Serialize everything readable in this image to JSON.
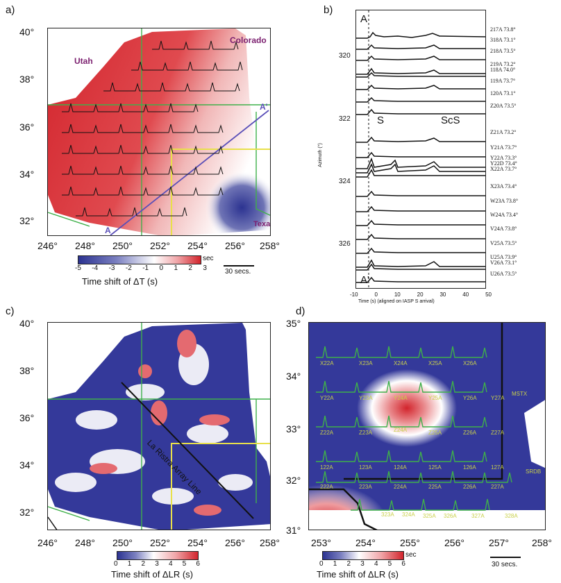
{
  "panels": {
    "a": "a)",
    "b": "b)",
    "c": "c)",
    "d": "d)"
  },
  "panel_a": {
    "lat_ticks": [
      "40°",
      "38°",
      "36°",
      "34°",
      "32°"
    ],
    "lon_ticks": [
      "246°",
      "248°",
      "250°",
      "252°",
      "254°",
      "256°",
      "258°"
    ],
    "states": {
      "utah": "Utah",
      "colorado": "Colorado",
      "texas": "Texas"
    },
    "profile_start": "A",
    "profile_end": "A'",
    "colorbar_ticks": [
      "-5",
      "-4",
      "-3",
      "-2",
      "-1",
      "0",
      "1",
      "2",
      "3"
    ],
    "colorbar_unit": "sec",
    "caption": "Time shift of ΔT (s)",
    "scale": "30 secs."
  },
  "panel_b": {
    "top_label": "A",
    "bottom_label": "A'",
    "y_ticks": [
      "320",
      "322",
      "324",
      "326"
    ],
    "y_axis_label": "Azimuth (°)",
    "x_ticks": [
      "-10",
      "0",
      "10",
      "20",
      "30",
      "40",
      "50"
    ],
    "x_axis_label": "Time (s) (aligned on IASP S arrival)",
    "phase_s": "S",
    "phase_scs": "ScS",
    "stations": [
      "217A 73.8°",
      "318A 73.1°",
      "218A 73.5°",
      "219A 73.2°",
      "118A 74.0°",
      "119A 73.7°",
      "120A 73.1°",
      "Z20A 73.5°",
      "Z21A 73.2°",
      "Y21A 73.7°",
      "Y22A 73.3°",
      "Y22D 73.4°",
      "X22A 73.7°",
      "X23A 73.4°",
      "W23A 73.8°",
      "W24A 73.4°",
      "V24A 73.8°",
      "V25A 73.5°",
      "U25A 73.9°",
      "V26A 73.1°",
      "U26A 73.5°"
    ]
  },
  "panel_c": {
    "lat_ticks": [
      "40°",
      "38°",
      "36°",
      "34°",
      "32°"
    ],
    "lon_ticks": [
      "246°",
      "248°",
      "250°",
      "252°",
      "254°",
      "256°",
      "258°"
    ],
    "line_label": "La Ristra Array Line",
    "colorbar_ticks": [
      "0",
      "1",
      "2",
      "3",
      "4",
      "5",
      "6"
    ],
    "caption": "Time shift of ΔLR (s)"
  },
  "panel_d": {
    "lat_ticks": [
      "35°",
      "34°",
      "33°",
      "32°",
      "31°"
    ],
    "lon_ticks": [
      "253°",
      "254°",
      "255°",
      "256°",
      "257°",
      "258°"
    ],
    "colorbar_ticks": [
      "0",
      "1",
      "2",
      "3",
      "4",
      "5",
      "6"
    ],
    "colorbar_unit": "sec",
    "caption": "Time shift of ΔLR (s)",
    "scale": "30 secs.",
    "stations": [
      "X22A",
      "X23A",
      "X24A",
      "X25A",
      "X26A",
      "Y22A",
      "Y23A",
      "Y24A",
      "Y25A",
      "Y26A",
      "Y27A",
      "MSTX",
      "Z22A",
      "Z23A",
      "Z24A",
      "Z25A",
      "Z26A",
      "Z27A",
      "122A",
      "123A",
      "124A",
      "125A",
      "126A",
      "127A",
      "222A",
      "223A",
      "224A",
      "225A",
      "226A",
      "227A",
      "SRDB",
      "323A",
      "324A",
      "325A",
      "326A",
      "327A",
      "328A"
    ]
  },
  "colors": {
    "red": "#d2242c",
    "blue": "#2c3391",
    "green": "#3fb04a",
    "yellow": "#e8e04a"
  }
}
